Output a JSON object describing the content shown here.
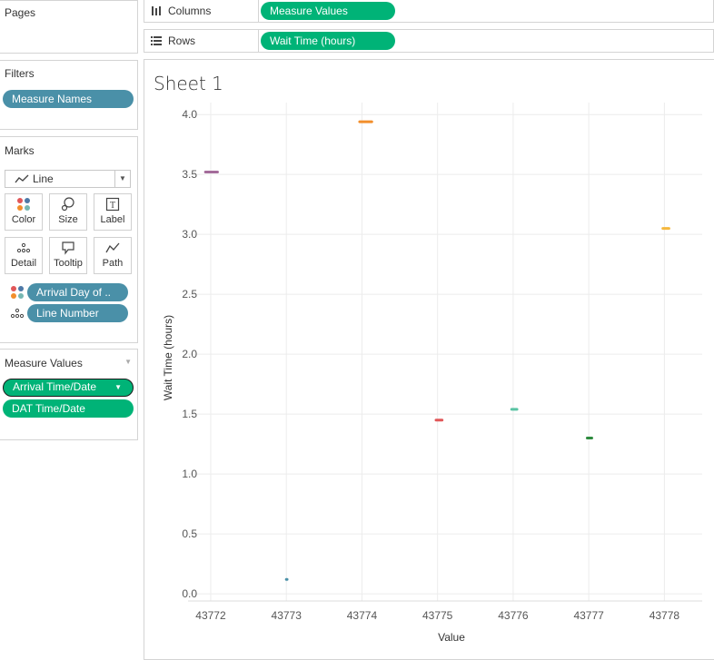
{
  "pages": {
    "title": "Pages"
  },
  "filters": {
    "title": "Filters",
    "pills": [
      "Measure Names"
    ]
  },
  "marks": {
    "title": "Marks",
    "type": "Line",
    "cards": [
      "Color",
      "Size",
      "Label",
      "Detail",
      "Tooltip",
      "Path"
    ],
    "fields": [
      "Arrival Day of ..",
      "Line Number"
    ]
  },
  "measure_values": {
    "title": "Measure Values",
    "pills": [
      "Arrival Time/Date",
      "DAT Time/Date"
    ]
  },
  "columns": {
    "label": "Columns",
    "pill": "Measure Values"
  },
  "rows": {
    "label": "Rows",
    "pill": "Wait Time (hours)"
  },
  "sheet": {
    "title": "Sheet 1"
  },
  "chart_data": {
    "type": "line",
    "xlabel": "Value",
    "ylabel": "Wait Time (hours)",
    "xlim": [
      43771.7,
      43778.5
    ],
    "ylim": [
      -0.06,
      4.1
    ],
    "x_ticks": [
      43772,
      43773,
      43774,
      43775,
      43776,
      43777,
      43778
    ],
    "y_ticks": [
      "0.0",
      "0.5",
      "1.0",
      "1.5",
      "2.0",
      "2.5",
      "3.0",
      "3.5",
      "4.0"
    ],
    "grid": true,
    "segments": [
      {
        "x": [
          43771.93,
          43772.09
        ],
        "y": 3.52,
        "color": "#a36b9a"
      },
      {
        "x": [
          43773.0,
          43773.01
        ],
        "y": 0.12,
        "color": "#4a90a8"
      },
      {
        "x": [
          43773.97,
          43774.13
        ],
        "y": 3.94,
        "color": "#f28e2b"
      },
      {
        "x": [
          43774.98,
          43775.06
        ],
        "y": 1.45,
        "color": "#e15759"
      },
      {
        "x": [
          43775.98,
          43776.05
        ],
        "y": 1.54,
        "color": "#59c3a3"
      },
      {
        "x": [
          43776.98,
          43777.04
        ],
        "y": 1.3,
        "color": "#2e8b3e"
      },
      {
        "x": [
          43777.98,
          43778.06
        ],
        "y": 3.05,
        "color": "#f5b83d"
      }
    ]
  }
}
